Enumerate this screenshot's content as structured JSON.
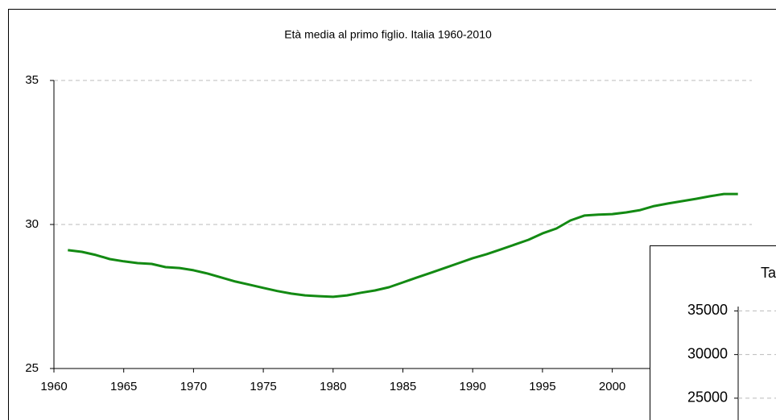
{
  "chart_data": [
    {
      "type": "line",
      "title": "Età media al primo figlio. Italia 1960-2010",
      "x": [
        1961,
        1962,
        1963,
        1964,
        1965,
        1966,
        1967,
        1968,
        1969,
        1970,
        1971,
        1972,
        1973,
        1974,
        1975,
        1976,
        1977,
        1978,
        1979,
        1980,
        1981,
        1982,
        1983,
        1984,
        1985,
        1986,
        1987,
        1988,
        1989,
        1990,
        1991,
        1992,
        1993,
        1994,
        1995,
        1996,
        1997,
        1998,
        1999,
        2000,
        2001,
        2002,
        2003,
        2004,
        2005,
        2006,
        2007,
        2008,
        2009
      ],
      "values": [
        29.11,
        29.05,
        28.94,
        28.8,
        28.72,
        28.66,
        28.63,
        28.52,
        28.49,
        28.41,
        28.3,
        28.16,
        28.02,
        27.91,
        27.8,
        27.69,
        27.6,
        27.54,
        27.51,
        27.49,
        27.54,
        27.63,
        27.71,
        27.82,
        27.99,
        28.16,
        28.32,
        28.49,
        28.66,
        28.83,
        28.97,
        29.13,
        29.3,
        29.47,
        29.69,
        29.86,
        30.14,
        30.31,
        30.34,
        30.36,
        30.42,
        30.5,
        30.64,
        30.73,
        30.81,
        30.89,
        30.98,
        31.06,
        31.06
      ],
      "color": "#138a13",
      "xlim": [
        1960,
        2010
      ],
      "xticks": [
        1960,
        1965,
        1970,
        1975,
        1980,
        1985,
        1990,
        1995,
        2000
      ],
      "ylim": [
        25,
        35
      ],
      "yticks": [
        25,
        30,
        35
      ],
      "grid": true
    },
    {
      "type": "line",
      "title": "Ta",
      "ylim": [
        22500,
        35500
      ],
      "yticks": [
        25000,
        30000,
        35000
      ],
      "grid": true
    }
  ]
}
